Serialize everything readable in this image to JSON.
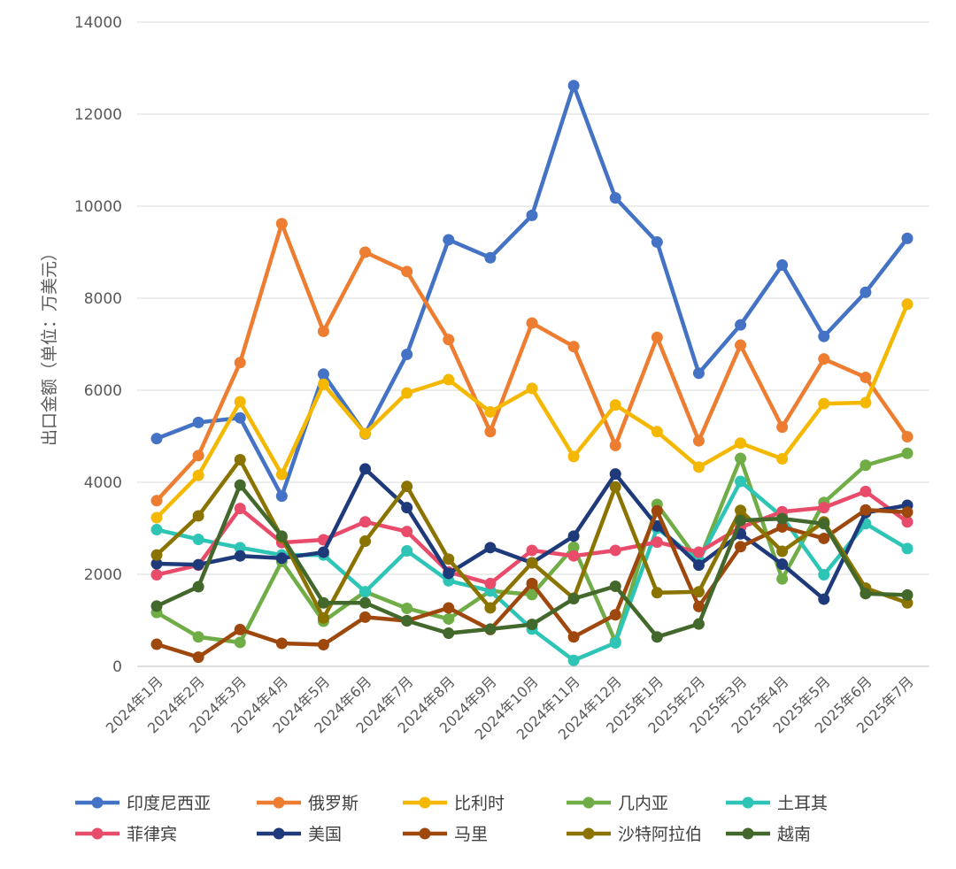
{
  "chart_data": {
    "type": "line",
    "title": "",
    "xlabel": "",
    "ylabel": "出口金额（单位：万美元）",
    "ylim": [
      0,
      14000
    ],
    "yticks": [
      0,
      2000,
      4000,
      6000,
      8000,
      10000,
      12000,
      14000
    ],
    "grid": true,
    "legend_position": "bottom",
    "categories": [
      "2024年1月",
      "2024年2月",
      "2024年3月",
      "2024年4月",
      "2024年5月",
      "2024年6月",
      "2024年7月",
      "2024年8月",
      "2024年9月",
      "2024年10月",
      "2024年11月",
      "2024年12月",
      "2025年1月",
      "2025年2月",
      "2025年3月",
      "2025年4月",
      "2025年5月",
      "2025年6月",
      "2025年7月"
    ],
    "series": [
      {
        "name": "印度尼西亚",
        "color": "#4472C4",
        "values": [
          4950,
          5300,
          5400,
          3700,
          6350,
          5050,
          6780,
          9270,
          8880,
          9800,
          12620,
          10180,
          9220,
          6370,
          7420,
          8720,
          7170,
          8130,
          9300
        ]
      },
      {
        "name": "俄罗斯",
        "color": "#ED7D31",
        "values": [
          3600,
          4580,
          6600,
          9620,
          7280,
          9000,
          8580,
          7100,
          5100,
          7460,
          6950,
          4800,
          7150,
          4900,
          6980,
          5200,
          6680,
          6280,
          4990
        ]
      },
      {
        "name": "比利时",
        "color": "#F5B800",
        "values": [
          3230,
          4150,
          5750,
          4170,
          6130,
          5060,
          5940,
          6230,
          5530,
          6040,
          4560,
          5680,
          5100,
          4330,
          4850,
          4510,
          5710,
          5730,
          7870
        ]
      },
      {
        "name": "几内亚",
        "color": "#70AD47",
        "values": [
          1170,
          640,
          520,
          2280,
          980,
          1620,
          1260,
          1030,
          1640,
          1560,
          2590,
          540,
          3520,
          2280,
          4520,
          1900,
          3560,
          4370,
          4630
        ]
      },
      {
        "name": "土耳其",
        "color": "#2EC4B6",
        "values": [
          2970,
          2760,
          2580,
          2420,
          2420,
          1620,
          2510,
          1860,
          1640,
          810,
          130,
          510,
          3000,
          2300,
          4020,
          3250,
          1990,
          3100,
          2560
        ]
      },
      {
        "name": "菲律宾",
        "color": "#E84C6A",
        "values": [
          1990,
          2200,
          3430,
          2690,
          2750,
          3140,
          2930,
          2050,
          1800,
          2520,
          2400,
          2520,
          2700,
          2480,
          3020,
          3360,
          3450,
          3800,
          3140
        ]
      },
      {
        "name": "美国",
        "color": "#1F3A7A",
        "values": [
          2230,
          2210,
          2400,
          2350,
          2480,
          4290,
          3450,
          2020,
          2580,
          2250,
          2830,
          4180,
          3050,
          2200,
          2880,
          2220,
          1460,
          3340,
          3500
        ]
      },
      {
        "name": "马里",
        "color": "#9E480E",
        "values": [
          480,
          200,
          800,
          500,
          470,
          1070,
          990,
          1270,
          800,
          1800,
          640,
          1120,
          3380,
          1300,
          2600,
          3030,
          2780,
          3400,
          3350
        ]
      },
      {
        "name": "沙特阿拉伯",
        "color": "#8B7300",
        "values": [
          2420,
          3270,
          4490,
          2800,
          1050,
          2720,
          3910,
          2330,
          1270,
          2250,
          1480,
          3900,
          1600,
          1620,
          3390,
          2500,
          3140,
          1700,
          1380
        ]
      },
      {
        "name": "越南",
        "color": "#43682B",
        "values": [
          1310,
          1730,
          3940,
          2830,
          1380,
          1380,
          990,
          720,
          810,
          910,
          1470,
          1740,
          640,
          920,
          3170,
          3210,
          3100,
          1580,
          1550
        ]
      }
    ]
  }
}
